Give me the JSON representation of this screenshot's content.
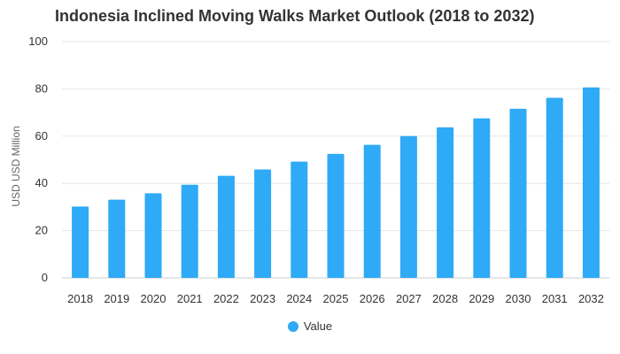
{
  "chart_data": {
    "type": "bar",
    "title": "Indonesia Inclined Moving Walks Market Outlook (2018 to 2032)",
    "xlabel": "",
    "ylabel": "USD USD Million",
    "ylim": [
      0,
      100
    ],
    "yticks": [
      0,
      20,
      40,
      60,
      80,
      100
    ],
    "grid": true,
    "legend_position": "bottom",
    "categories": [
      "2018",
      "2019",
      "2020",
      "2021",
      "2022",
      "2023",
      "2024",
      "2025",
      "2026",
      "2027",
      "2028",
      "2029",
      "2030",
      "2031",
      "2032"
    ],
    "series": [
      {
        "name": "Value",
        "color": "#2eaaf7",
        "values": [
          30.2,
          33.1,
          35.8,
          39.4,
          43.2,
          45.9,
          49.2,
          52.5,
          56.3,
          60.0,
          63.7,
          67.5,
          71.6,
          76.2,
          80.6
        ]
      }
    ]
  }
}
